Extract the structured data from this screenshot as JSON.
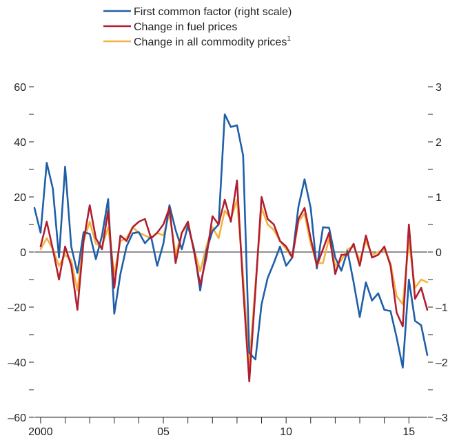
{
  "chart_data": {
    "type": "line",
    "title": "",
    "xlabel": "",
    "ylabel": "",
    "x_tick_labels": [
      "2000",
      "05",
      "10",
      "15"
    ],
    "left_axis": {
      "min": -60,
      "max": 60,
      "labeled_ticks": [
        -60,
        -40,
        -20,
        0,
        20,
        40,
        60
      ],
      "minor_step": 10,
      "tick_labels": [
        "–60",
        "–40",
        "–20",
        "0",
        "20",
        "40",
        "60"
      ]
    },
    "right_axis": {
      "min": -3,
      "max": 3,
      "labeled_ticks": [
        -3,
        -2,
        -1,
        0,
        1,
        2,
        3
      ],
      "minor_step": 0.5,
      "tick_labels": [
        "–3",
        "–2",
        "–1",
        "0",
        "1",
        "2",
        "3"
      ]
    },
    "x_range": [
      1999.75,
      2015.5
    ],
    "legend": {
      "position": "top-center",
      "entries": [
        {
          "label": "First common factor (right scale)",
          "sup": ""
        },
        {
          "label": "Change in fuel prices",
          "sup": ""
        },
        {
          "label": "Change in all commodity prices",
          "sup": "1"
        }
      ]
    },
    "series": [
      {
        "name": "First common factor (right scale)",
        "axis": "right",
        "color": "#1f5fa8",
        "points": [
          [
            1999.75,
            0.8
          ],
          [
            2000.0,
            0.35
          ],
          [
            2000.25,
            1.62
          ],
          [
            2000.5,
            1.15
          ],
          [
            2000.75,
            -0.1
          ],
          [
            2001.0,
            1.55
          ],
          [
            2001.25,
            0.1
          ],
          [
            2001.5,
            -0.38
          ],
          [
            2001.75,
            0.36
          ],
          [
            2002.0,
            0.33
          ],
          [
            2002.25,
            -0.13
          ],
          [
            2002.5,
            0.3
          ],
          [
            2002.75,
            0.96
          ],
          [
            2003.0,
            -1.12
          ],
          [
            2003.25,
            -0.4
          ],
          [
            2003.5,
            0.1
          ],
          [
            2003.75,
            0.34
          ],
          [
            2004.0,
            0.36
          ],
          [
            2004.25,
            0.16
          ],
          [
            2004.5,
            0.28
          ],
          [
            2004.75,
            -0.25
          ],
          [
            2005.0,
            0.15
          ],
          [
            2005.25,
            0.85
          ],
          [
            2005.5,
            0.4
          ],
          [
            2005.75,
            0.05
          ],
          [
            2006.0,
            0.48
          ],
          [
            2006.25,
            0.05
          ],
          [
            2006.5,
            -0.7
          ],
          [
            2006.75,
            0.02
          ],
          [
            2007.0,
            0.38
          ],
          [
            2007.25,
            0.5
          ],
          [
            2007.5,
            2.5
          ],
          [
            2007.75,
            2.27
          ],
          [
            2008.0,
            2.3
          ],
          [
            2008.25,
            1.75
          ],
          [
            2008.5,
            -1.83
          ],
          [
            2008.75,
            -1.95
          ],
          [
            2009.0,
            -0.95
          ],
          [
            2009.25,
            -0.47
          ],
          [
            2009.5,
            -0.2
          ],
          [
            2009.75,
            0.1
          ],
          [
            2010.0,
            -0.25
          ],
          [
            2010.25,
            -0.1
          ],
          [
            2010.5,
            0.82
          ],
          [
            2010.75,
            1.32
          ],
          [
            2011.0,
            0.8
          ],
          [
            2011.25,
            -0.3
          ],
          [
            2011.5,
            0.45
          ],
          [
            2011.75,
            0.44
          ],
          [
            2012.0,
            -0.1
          ],
          [
            2012.25,
            -0.34
          ],
          [
            2012.5,
            0.02
          ],
          [
            2012.75,
            -0.55
          ],
          [
            2013.0,
            -1.18
          ],
          [
            2013.25,
            -0.55
          ],
          [
            2013.5,
            -0.88
          ],
          [
            2013.75,
            -0.75
          ],
          [
            2014.0,
            -1.05
          ],
          [
            2014.25,
            -1.07
          ],
          [
            2014.5,
            -1.55
          ],
          [
            2014.75,
            -2.1
          ],
          [
            2015.0,
            -0.5
          ],
          [
            2015.25,
            -1.25
          ],
          [
            2015.5,
            -1.33
          ],
          [
            2015.75,
            -1.87
          ]
        ]
      },
      {
        "name": "Change in fuel prices",
        "axis": "left",
        "color": "#b01f30",
        "points": [
          [
            2000.0,
            2
          ],
          [
            2000.25,
            11
          ],
          [
            2000.5,
            1
          ],
          [
            2000.75,
            -10
          ],
          [
            2001.0,
            2
          ],
          [
            2001.25,
            -5
          ],
          [
            2001.5,
            -21
          ],
          [
            2001.75,
            4
          ],
          [
            2002.0,
            17
          ],
          [
            2002.25,
            5
          ],
          [
            2002.5,
            1
          ],
          [
            2002.75,
            15
          ],
          [
            2003.0,
            -13
          ],
          [
            2003.25,
            6
          ],
          [
            2003.5,
            4
          ],
          [
            2003.75,
            9
          ],
          [
            2004.0,
            11
          ],
          [
            2004.25,
            12
          ],
          [
            2004.5,
            5
          ],
          [
            2004.75,
            7
          ],
          [
            2005.0,
            10
          ],
          [
            2005.25,
            16
          ],
          [
            2005.5,
            -4
          ],
          [
            2005.75,
            7
          ],
          [
            2006.0,
            11
          ],
          [
            2006.25,
            0
          ],
          [
            2006.5,
            -12
          ],
          [
            2006.75,
            -2
          ],
          [
            2007.0,
            13
          ],
          [
            2007.25,
            10
          ],
          [
            2007.5,
            19
          ],
          [
            2007.75,
            11
          ],
          [
            2008.0,
            26
          ],
          [
            2008.25,
            -13
          ],
          [
            2008.5,
            -47
          ],
          [
            2008.75,
            -14
          ],
          [
            2009.0,
            20
          ],
          [
            2009.25,
            12
          ],
          [
            2009.5,
            10
          ],
          [
            2009.75,
            4
          ],
          [
            2010.0,
            2
          ],
          [
            2010.25,
            -2
          ],
          [
            2010.5,
            12
          ],
          [
            2010.75,
            16
          ],
          [
            2011.0,
            5
          ],
          [
            2011.25,
            -5
          ],
          [
            2011.5,
            1
          ],
          [
            2011.75,
            7
          ],
          [
            2012.0,
            -8
          ],
          [
            2012.25,
            -1
          ],
          [
            2012.5,
            -1
          ],
          [
            2012.75,
            3
          ],
          [
            2013.0,
            -5
          ],
          [
            2013.25,
            6
          ],
          [
            2013.5,
            -2
          ],
          [
            2013.75,
            -1
          ],
          [
            2014.0,
            2
          ],
          [
            2014.25,
            -5
          ],
          [
            2014.5,
            -22
          ],
          [
            2014.75,
            -27
          ],
          [
            2015.0,
            10
          ],
          [
            2015.25,
            -17
          ],
          [
            2015.5,
            -13
          ],
          [
            2015.75,
            -21
          ]
        ]
      },
      {
        "name": "Change in all commodity prices",
        "axis": "left",
        "color": "#f5b13d",
        "points": [
          [
            2000.0,
            1
          ],
          [
            2000.25,
            5
          ],
          [
            2000.5,
            1
          ],
          [
            2000.75,
            -5
          ],
          [
            2001.0,
            -1
          ],
          [
            2001.25,
            -3
          ],
          [
            2001.5,
            -14
          ],
          [
            2001.75,
            4
          ],
          [
            2002.0,
            11
          ],
          [
            2002.25,
            3
          ],
          [
            2002.5,
            2
          ],
          [
            2002.75,
            9
          ],
          [
            2003.0,
            -8
          ],
          [
            2003.25,
            4
          ],
          [
            2003.5,
            5
          ],
          [
            2003.75,
            9
          ],
          [
            2004.0,
            7
          ],
          [
            2004.25,
            6
          ],
          [
            2004.5,
            5
          ],
          [
            2004.75,
            7
          ],
          [
            2005.0,
            6
          ],
          [
            2005.25,
            14
          ],
          [
            2005.5,
            -1
          ],
          [
            2005.75,
            7
          ],
          [
            2006.0,
            10
          ],
          [
            2006.25,
            1
          ],
          [
            2006.5,
            -7
          ],
          [
            2006.75,
            2
          ],
          [
            2007.0,
            9
          ],
          [
            2007.25,
            5
          ],
          [
            2007.5,
            15
          ],
          [
            2007.75,
            12
          ],
          [
            2008.0,
            19
          ],
          [
            2008.25,
            -9
          ],
          [
            2008.5,
            -41
          ],
          [
            2008.75,
            -12
          ],
          [
            2009.0,
            16
          ],
          [
            2009.25,
            10
          ],
          [
            2009.5,
            8
          ],
          [
            2009.75,
            4
          ],
          [
            2010.0,
            1
          ],
          [
            2010.25,
            -2
          ],
          [
            2010.5,
            11
          ],
          [
            2010.75,
            14
          ],
          [
            2011.0,
            3
          ],
          [
            2011.25,
            -4
          ],
          [
            2011.5,
            -4
          ],
          [
            2011.75,
            5
          ],
          [
            2012.0,
            -5
          ],
          [
            2012.25,
            -3
          ],
          [
            2012.5,
            1
          ],
          [
            2012.75,
            2
          ],
          [
            2013.0,
            -3
          ],
          [
            2013.25,
            4
          ],
          [
            2013.5,
            -1
          ],
          [
            2013.75,
            0
          ],
          [
            2014.0,
            1
          ],
          [
            2014.25,
            -4
          ],
          [
            2014.5,
            -16
          ],
          [
            2014.75,
            -19
          ],
          [
            2015.0,
            4
          ],
          [
            2015.25,
            -13
          ],
          [
            2015.5,
            -10
          ],
          [
            2015.75,
            -11
          ]
        ]
      }
    ]
  }
}
